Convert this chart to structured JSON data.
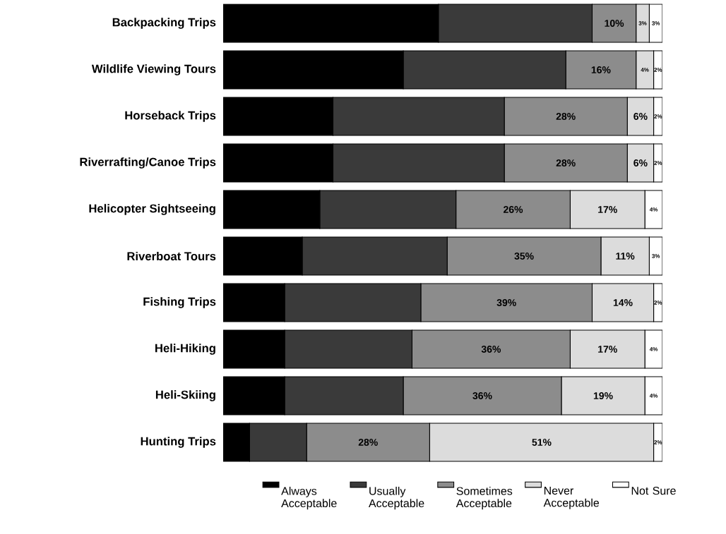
{
  "chart_data": {
    "type": "bar",
    "orientation": "horizontal",
    "stacked": true,
    "legend": "bottom",
    "categories": [
      "Backpacking Trips",
      "Wildlife Viewing Tours",
      "Horseback Trips",
      "Riverrafting/Canoe Trips",
      "Helicopter Sightseeing",
      "Riverboat Tours",
      "Fishing Trips",
      "Heli-Hiking",
      "Heli-Skiing",
      "Hunting Trips"
    ],
    "series": [
      {
        "name": "Always Acceptable",
        "color": "#000000",
        "values": [
          49,
          41,
          25,
          25,
          22,
          18,
          14,
          14,
          14,
          6
        ]
      },
      {
        "name": "Usually Acceptable",
        "color": "#3a3a3a",
        "values": [
          35,
          37,
          39,
          39,
          31,
          33,
          31,
          29,
          27,
          13
        ]
      },
      {
        "name": "Sometimes Acceptable",
        "color": "#8c8c8c",
        "values": [
          10,
          16,
          28,
          28,
          26,
          35,
          39,
          36,
          36,
          28
        ],
        "value_labels": [
          "10%",
          "16%",
          "28%",
          "28%",
          "26%",
          "35%",
          "39%",
          "36%",
          "36%",
          "28%"
        ]
      },
      {
        "name": "Never Acceptable",
        "color": "#dcdcdc",
        "values": [
          3,
          4,
          6,
          6,
          17,
          11,
          14,
          17,
          19,
          51
        ],
        "value_labels": [
          "3%",
          "4%",
          "6%",
          "6%",
          "17%",
          "11%",
          "14%",
          "17%",
          "19%",
          "51%"
        ]
      },
      {
        "name": "Not Sure",
        "color": "#ffffff",
        "values": [
          3,
          2,
          2,
          2,
          4,
          3,
          2,
          4,
          4,
          2
        ],
        "value_labels": [
          "3%",
          "2%",
          "2%",
          "2%",
          "4%",
          "3%",
          "2%",
          "4%",
          "4%",
          "2%"
        ]
      }
    ]
  }
}
